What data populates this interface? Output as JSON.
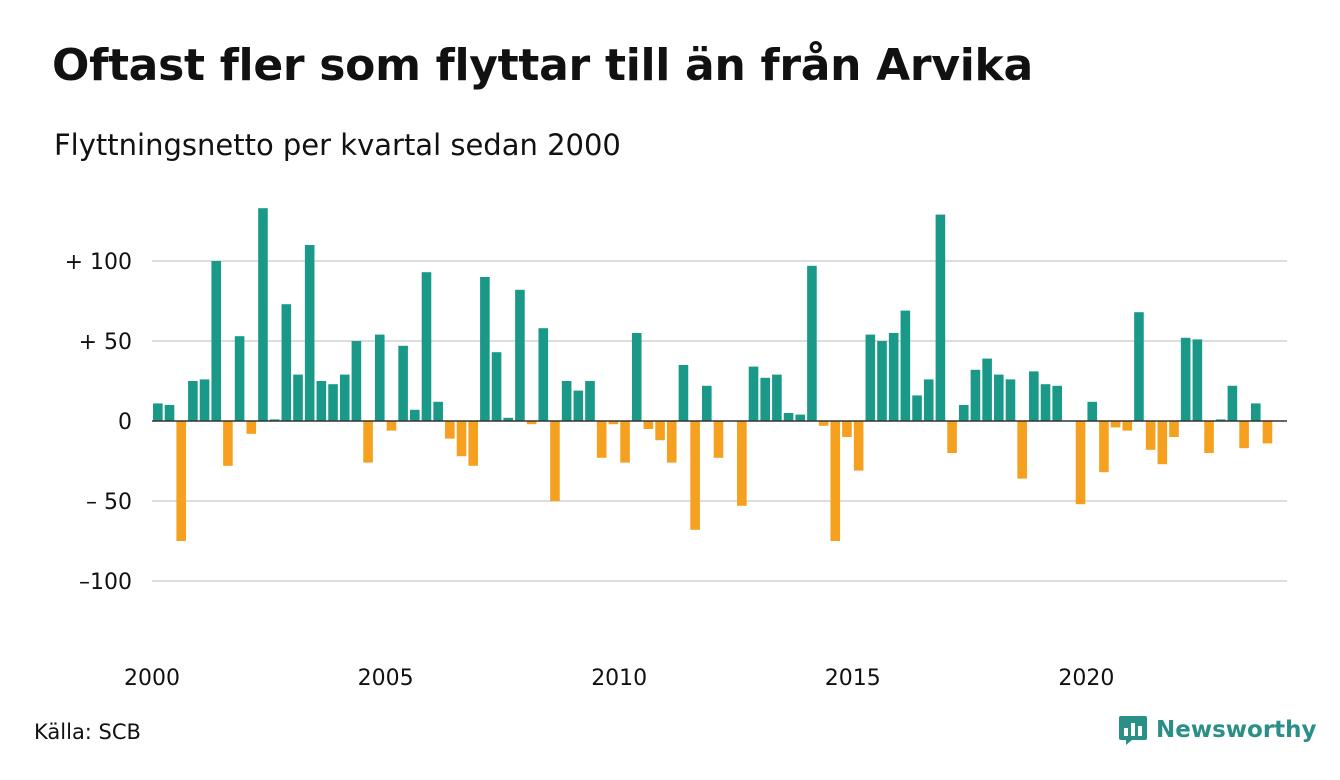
{
  "header": {
    "title": "Oftast fler som flyttar till än från Arvika",
    "subtitle": "Flyttningsnetto per kvartal sedan 2000"
  },
  "footer": {
    "source": "Källa: SCB",
    "brand": "Newsworthy"
  },
  "colors": {
    "positive": "#1a9988",
    "negative": "#f5a11f",
    "grid": "#dddddd",
    "brand": "#2a8f86"
  },
  "chart_data": {
    "type": "bar",
    "title": "Oftast fler som flyttar till än från Arvika",
    "subtitle": "Flyttningsnetto per kvartal sedan 2000",
    "x_start": "2000Q1",
    "frequency": "quarterly",
    "x_ticks": [
      2000,
      2005,
      2010,
      2015,
      2020
    ],
    "y_ticks": [
      {
        "value": 100,
        "label": "+ 100"
      },
      {
        "value": 50,
        "label": "+  50"
      },
      {
        "value": 0,
        "label": "0"
      },
      {
        "value": -50,
        "label": "– 50"
      },
      {
        "value": -100,
        "label": "–100"
      }
    ],
    "ylim": [
      -130,
      135
    ],
    "grid": true,
    "values": [
      11,
      10,
      -75,
      25,
      26,
      100,
      -28,
      53,
      -8,
      133,
      1,
      73,
      29,
      110,
      25,
      23,
      29,
      50,
      -26,
      54,
      -6,
      47,
      7,
      93,
      12,
      -11,
      -22,
      -28,
      90,
      43,
      2,
      82,
      -2,
      58,
      -50,
      25,
      19,
      25,
      -23,
      -2,
      -26,
      55,
      -5,
      -12,
      -26,
      35,
      -68,
      22,
      -23,
      0,
      -53,
      34,
      27,
      29,
      5,
      4,
      97,
      -3,
      -75,
      -10,
      -31,
      54,
      50,
      55,
      69,
      16,
      26,
      129,
      -20,
      10,
      32,
      39,
      29,
      26,
      -36,
      31,
      23,
      22,
      0,
      -52,
      12,
      -32,
      -4,
      -6,
      68,
      -18,
      -27,
      -10,
      52,
      51,
      -20,
      1,
      22,
      -17,
      11,
      -14
    ]
  }
}
